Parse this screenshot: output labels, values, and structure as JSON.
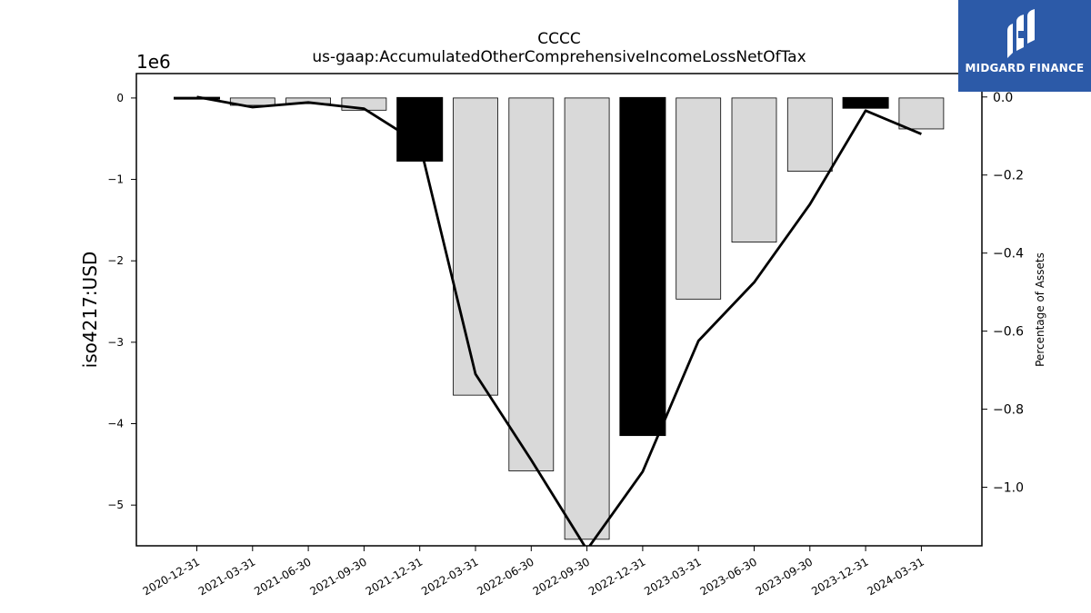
{
  "brand": {
    "name": "MIDGARD FINANCE",
    "color": "#2c5aa8"
  },
  "chart_data": {
    "type": "bar",
    "title": "CCCC",
    "subtitle": "us-gaap:AccumulatedOtherComprehensiveIncomeLossNetOfTax",
    "ylabel": "iso4217:USD",
    "y_offset_label": "1e6",
    "y2label": "Percentage of Assets",
    "categories": [
      "2020-12-31",
      "2021-03-31",
      "2021-06-30",
      "2021-09-30",
      "2021-12-31",
      "2022-03-31",
      "2022-06-30",
      "2022-09-30",
      "2022-12-31",
      "2023-03-31",
      "2023-06-30",
      "2023-09-30",
      "2023-12-31",
      "2024-03-31"
    ],
    "series": [
      {
        "type": "bar",
        "values": [
          0.003,
          -0.09,
          -0.07,
          -0.15,
          -0.77,
          -3.65,
          -4.58,
          -5.42,
          -4.14,
          -2.47,
          -1.77,
          -0.9,
          -0.12,
          -0.38
        ],
        "highlight": [
          true,
          false,
          false,
          false,
          true,
          false,
          false,
          false,
          true,
          false,
          false,
          false,
          true,
          false
        ],
        "fill": "#d9d9d9",
        "highlight_fill": "#000000"
      },
      {
        "type": "line",
        "axis": "right",
        "values": [
          0.0,
          -0.026,
          -0.014,
          -0.03,
          -0.12,
          -0.71,
          -0.93,
          -1.16,
          -0.96,
          -0.625,
          -0.475,
          -0.275,
          -0.035,
          -0.095
        ],
        "color": "#000000"
      }
    ],
    "ylim": [
      -5.5,
      0.3
    ],
    "y_ticks": [
      0,
      -1,
      -2,
      -3,
      -4,
      -5
    ],
    "y2lim": [
      -1.15,
      0.06
    ],
    "y2_ticks": [
      0.0,
      -0.2,
      -0.4,
      -0.6,
      -0.8,
      -1.0
    ],
    "grid": false
  }
}
